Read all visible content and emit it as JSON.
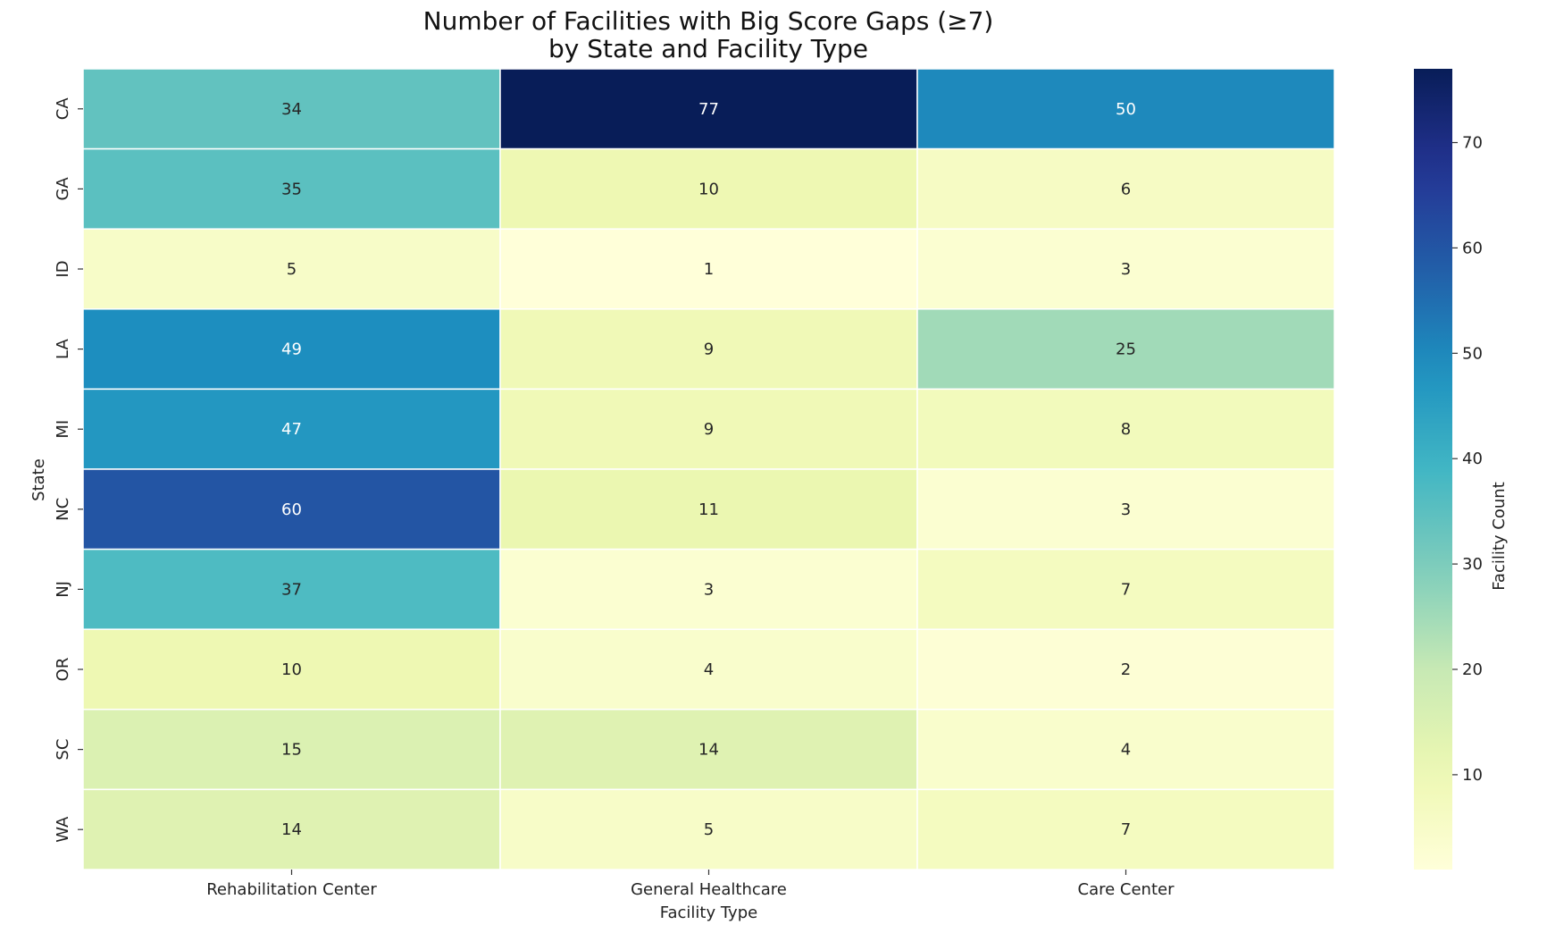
{
  "chart_data": {
    "type": "heatmap",
    "title": [
      "Number of Facilities with Big Score Gaps (≥7)",
      "by State and Facility Type"
    ],
    "xlabel": "Facility Type",
    "ylabel": "State",
    "x_categories": [
      "Rehabilitation Center",
      "General Healthcare",
      "Care Center"
    ],
    "y_categories": [
      "CA",
      "GA",
      "ID",
      "LA",
      "MI",
      "NC",
      "NJ",
      "OR",
      "SC",
      "WA"
    ],
    "values": [
      [
        34,
        77,
        50
      ],
      [
        35,
        10,
        6
      ],
      [
        5,
        1,
        3
      ],
      [
        49,
        9,
        25
      ],
      [
        47,
        9,
        8
      ],
      [
        60,
        11,
        3
      ],
      [
        37,
        3,
        7
      ],
      [
        10,
        4,
        2
      ],
      [
        15,
        14,
        4
      ],
      [
        14,
        5,
        7
      ]
    ],
    "colorbar": {
      "label": "Facility Count",
      "range": [
        1,
        77
      ],
      "ticks": [
        10,
        20,
        30,
        40,
        50,
        60,
        70
      ],
      "colormap": "YlGnBu"
    },
    "grid": false
  }
}
